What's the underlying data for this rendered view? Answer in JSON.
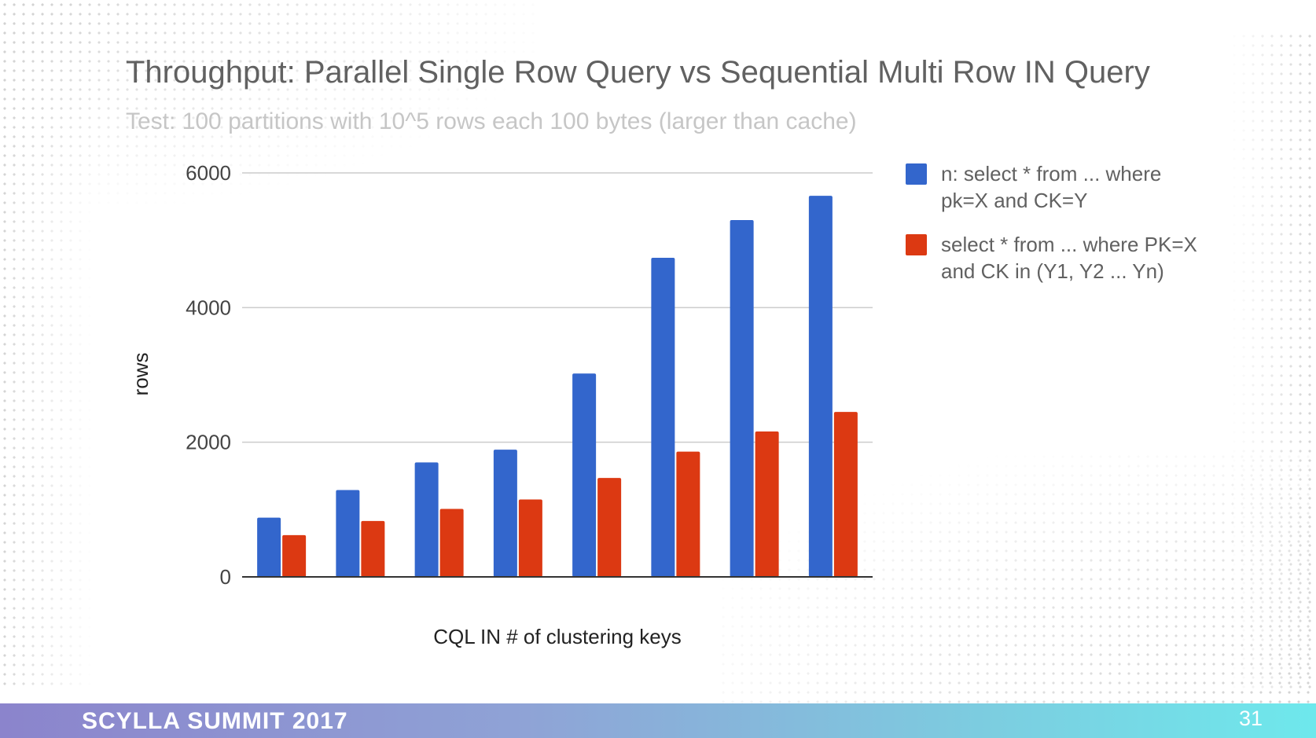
{
  "slide": {
    "footer_brand": "SCYLLA SUMMIT 2017",
    "page_number": "31"
  },
  "chart_data": {
    "type": "bar",
    "title": "Throughput: Parallel Single Row Query vs Sequential Multi Row IN Query",
    "subtitle": "Test: 100 partitions with 10^5 rows each 100 bytes (larger than cache)",
    "xlabel": "CQL IN # of clustering keys",
    "ylabel": "rows",
    "ylim": [
      0,
      6000
    ],
    "yticks": [
      0,
      2000,
      4000,
      6000
    ],
    "ytick_labels": [
      "0",
      "2000",
      "4000",
      "6000"
    ],
    "categories": [
      "",
      "",
      "",
      "",
      "",
      "",
      "",
      ""
    ],
    "grid": true,
    "legend_position": "right",
    "series": [
      {
        "name": "n: select * from ... where pk=X and CK=Y",
        "color": "#3366cc",
        "values": [
          880,
          1290,
          1700,
          1890,
          3020,
          4740,
          5300,
          5660
        ]
      },
      {
        "name": "select * from ... where PK=X and CK in (Y1, Y2 ... Yn)",
        "color": "#dc3912",
        "values": [
          620,
          830,
          1010,
          1150,
          1470,
          1860,
          2160,
          2450
        ]
      }
    ]
  }
}
